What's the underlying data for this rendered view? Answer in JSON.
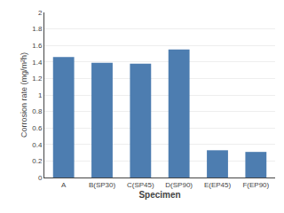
{
  "chart_data": {
    "type": "bar",
    "categories": [
      "A",
      "B(SP30)",
      "C(SP45)",
      "D(SP90)",
      "E(EP45)",
      "F(EP90)"
    ],
    "values": [
      1.46,
      1.39,
      1.38,
      1.55,
      0.33,
      0.31
    ],
    "color": "#4d7db0",
    "xlabel": "Specimen",
    "ylabel": "Corrosion rate (mg/m²h)",
    "ylim": [
      0,
      2.0
    ],
    "yticks": [
      0,
      0.2,
      0.4,
      0.6,
      0.8,
      1.0,
      1.2,
      1.4,
      1.6,
      1.8,
      2.0
    ],
    "grid": true
  }
}
